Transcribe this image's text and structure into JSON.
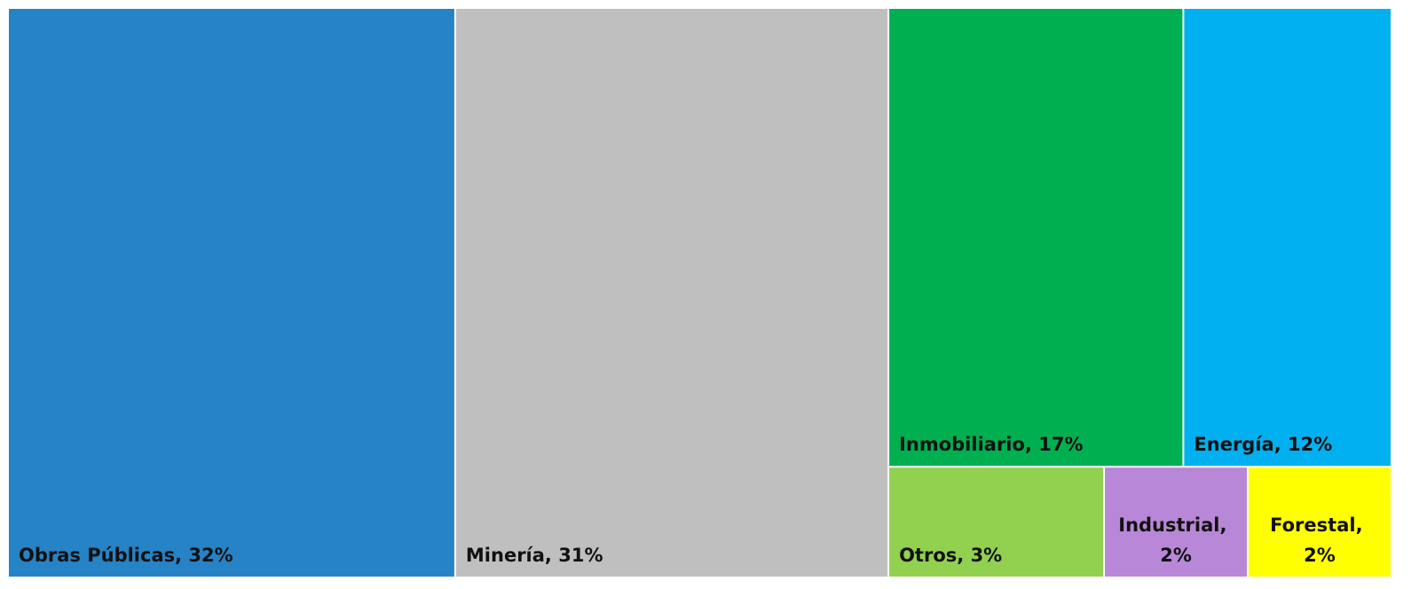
{
  "chart_data": {
    "type": "treemap",
    "categories": [
      "Obras Públicas",
      "Minería",
      "Inmobiliario",
      "Energía",
      "Otros",
      "Industrial",
      "Forestal"
    ],
    "values": [
      32,
      31,
      17,
      12,
      3,
      2,
      2
    ],
    "value_labels": [
      "32%",
      "31%",
      "17%",
      "12%",
      "3%",
      "2%",
      "2%"
    ],
    "label_separator": ", ",
    "colors": [
      "#2683c6",
      "#bfbfbf",
      "#00b050",
      "#00b0f0",
      "#92d050",
      "#b887d8",
      "#ffff00"
    ]
  }
}
